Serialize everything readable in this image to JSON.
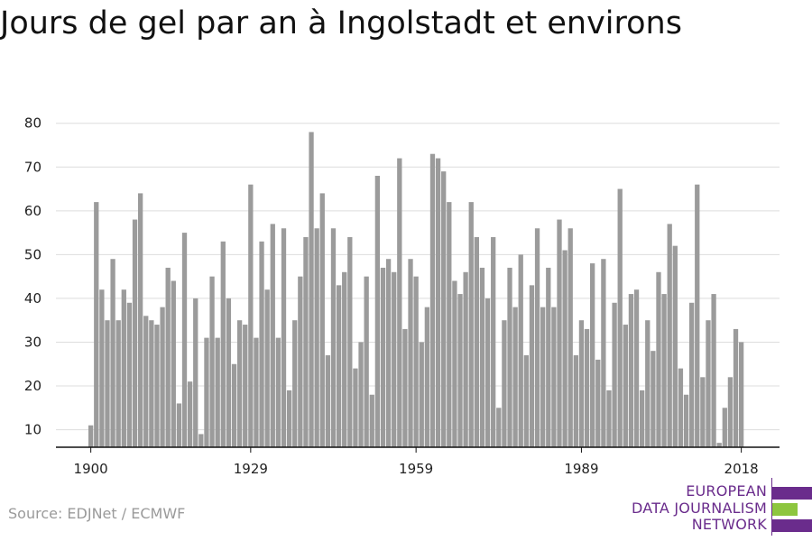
{
  "title": "Jours de gel par an à Ingolstadt et environs",
  "source": "Source: EDJNet / ECMWF",
  "logo": {
    "lines": [
      "EUROPEAN",
      "DATA JOURNALISM",
      "NETWORK"
    ],
    "colors": {
      "purple": "#6a2c8c",
      "green": "#8dc63f"
    }
  },
  "chart_data": {
    "type": "bar",
    "title": "Jours de gel par an à Ingolstadt et environs",
    "xlabel": "",
    "ylabel": "",
    "x_start": 1900,
    "x_end": 2020,
    "x_ticks": [
      1900,
      1929,
      1959,
      1989,
      2018
    ],
    "y_ticks": [
      10,
      20,
      30,
      40,
      50,
      60,
      70,
      80
    ],
    "ylim": [
      6,
      82
    ],
    "grid": "horizontal",
    "legend": "none",
    "bar_color": "#9b9b9b",
    "x": [
      1900,
      1901,
      1902,
      1903,
      1904,
      1905,
      1906,
      1907,
      1908,
      1909,
      1910,
      1911,
      1912,
      1913,
      1914,
      1915,
      1916,
      1917,
      1918,
      1919,
      1920,
      1921,
      1922,
      1923,
      1924,
      1925,
      1926,
      1927,
      1928,
      1929,
      1930,
      1931,
      1932,
      1933,
      1934,
      1935,
      1936,
      1937,
      1938,
      1939,
      1940,
      1941,
      1942,
      1943,
      1944,
      1945,
      1946,
      1947,
      1948,
      1949,
      1950,
      1951,
      1952,
      1953,
      1954,
      1955,
      1956,
      1957,
      1958,
      1959,
      1960,
      1961,
      1962,
      1963,
      1964,
      1965,
      1966,
      1967,
      1968,
      1969,
      1970,
      1971,
      1972,
      1973,
      1974,
      1975,
      1976,
      1977,
      1978,
      1979,
      1980,
      1981,
      1982,
      1983,
      1984,
      1985,
      1986,
      1987,
      1988,
      1989,
      1990,
      1991,
      1992,
      1993,
      1994,
      1995,
      1996,
      1997,
      1998,
      1999,
      2000,
      2001,
      2002,
      2003,
      2004,
      2005,
      2006,
      2007,
      2008,
      2009,
      2010,
      2011,
      2012,
      2013,
      2014,
      2015,
      2016,
      2017,
      2018
    ],
    "values": [
      11,
      62,
      42,
      35,
      49,
      35,
      42,
      39,
      58,
      64,
      36,
      35,
      34,
      38,
      47,
      44,
      16,
      55,
      21,
      40,
      9,
      31,
      45,
      31,
      53,
      40,
      25,
      35,
      34,
      66,
      31,
      53,
      42,
      57,
      31,
      56,
      19,
      35,
      45,
      54,
      78,
      56,
      64,
      27,
      56,
      43,
      46,
      54,
      24,
      30,
      45,
      18,
      68,
      47,
      49,
      46,
      72,
      33,
      49,
      45,
      30,
      38,
      73,
      72,
      69,
      62,
      44,
      41,
      46,
      62,
      54,
      47,
      40,
      54,
      15,
      35,
      47,
      38,
      50,
      27,
      43,
      56,
      38,
      47,
      38,
      58,
      51,
      56,
      27,
      35,
      33,
      48,
      26,
      49,
      19,
      39,
      65,
      34,
      41,
      42,
      19,
      35,
      28,
      46,
      41,
      57,
      52,
      24,
      18,
      39,
      66,
      22,
      35,
      41,
      7,
      15,
      22,
      33,
      30
    ]
  }
}
